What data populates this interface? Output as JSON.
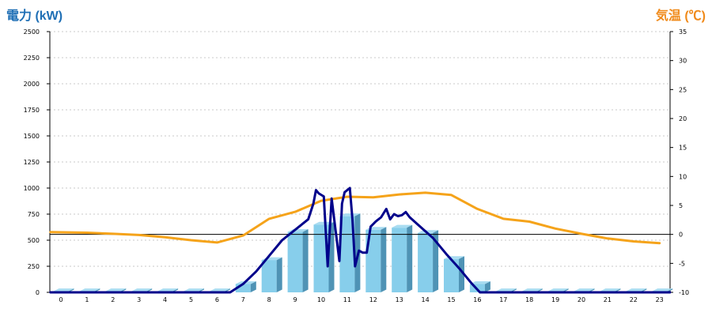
{
  "chart_data": {
    "type": "bar",
    "title": "",
    "xlabel": "",
    "y_left_label": "電力 (kW)",
    "y_right_label": "気温 (℃)",
    "categories": [
      "0",
      "1",
      "2",
      "3",
      "4",
      "5",
      "6",
      "7",
      "8",
      "9",
      "10",
      "11",
      "12",
      "13",
      "14",
      "15",
      "16",
      "17",
      "18",
      "19",
      "20",
      "21",
      "22",
      "23"
    ],
    "y_left_ticks": [
      "0",
      "250",
      "500",
      "750",
      "1000",
      "1250",
      "1500",
      "1750",
      "2000",
      "2250",
      "2500"
    ],
    "y_right_ticks": [
      "-10",
      "-5",
      "0",
      "5",
      "10",
      "15",
      "20",
      "25",
      "30",
      "35"
    ],
    "ylim_left": [
      0,
      2500
    ],
    "ylim_right": [
      -10,
      35
    ],
    "grid": true,
    "colors": {
      "left_title": "#1f6fb5",
      "right_title": "#f08a1a",
      "bar_front": "#87ceeb",
      "bar_side": "#4f93b5",
      "bar_top": "#a9dcf1",
      "power_line": "#00008b",
      "temperature_line": "#f5a31a",
      "zero_line": "#000000",
      "grid": "#c8c8c8"
    },
    "series": [
      {
        "kind": "bar",
        "axis": "left",
        "values": [
          10,
          10,
          10,
          10,
          10,
          10,
          10,
          80,
          310,
          580,
          650,
          730,
          600,
          620,
          570,
          320,
          80,
          10,
          10,
          10,
          10,
          10,
          10,
          10
        ]
      },
      {
        "kind": "line",
        "axis": "left",
        "points": [
          [
            -0.4,
            0
          ],
          [
            1,
            0
          ],
          [
            3,
            0
          ],
          [
            5,
            0
          ],
          [
            6.5,
            0
          ],
          [
            7,
            80
          ],
          [
            7.5,
            200
          ],
          [
            8,
            350
          ],
          [
            8.5,
            500
          ],
          [
            9,
            600
          ],
          [
            9.5,
            700
          ],
          [
            9.7,
            850
          ],
          [
            9.8,
            980
          ],
          [
            9.9,
            950
          ],
          [
            10.1,
            920
          ],
          [
            10.25,
            250
          ],
          [
            10.4,
            900
          ],
          [
            10.55,
            600
          ],
          [
            10.7,
            300
          ],
          [
            10.8,
            850
          ],
          [
            10.9,
            960
          ],
          [
            11.1,
            1000
          ],
          [
            11.2,
            700
          ],
          [
            11.3,
            250
          ],
          [
            11.45,
            400
          ],
          [
            11.6,
            380
          ],
          [
            11.75,
            380
          ],
          [
            11.9,
            630
          ],
          [
            12.1,
            680
          ],
          [
            12.3,
            720
          ],
          [
            12.5,
            800
          ],
          [
            12.65,
            700
          ],
          [
            12.8,
            750
          ],
          [
            12.95,
            730
          ],
          [
            13.1,
            740
          ],
          [
            13.25,
            770
          ],
          [
            13.4,
            720
          ],
          [
            13.8,
            630
          ],
          [
            14.3,
            520
          ],
          [
            14.8,
            370
          ],
          [
            15.3,
            230
          ],
          [
            15.8,
            80
          ],
          [
            16.1,
            0
          ],
          [
            18,
            0
          ],
          [
            20,
            0
          ],
          [
            23.4,
            0
          ]
        ]
      },
      {
        "kind": "line",
        "axis": "right",
        "points": [
          [
            -0.4,
            0.4
          ],
          [
            1,
            0.3
          ],
          [
            2,
            0.1
          ],
          [
            3,
            -0.1
          ],
          [
            4,
            -0.5
          ],
          [
            5,
            -1.0
          ],
          [
            6,
            -1.4
          ],
          [
            7,
            -0.2
          ],
          [
            8,
            2.7
          ],
          [
            9,
            3.9
          ],
          [
            10,
            5.8
          ],
          [
            11,
            6.5
          ],
          [
            12,
            6.4
          ],
          [
            13,
            6.9
          ],
          [
            14,
            7.2
          ],
          [
            15,
            6.8
          ],
          [
            16,
            4.4
          ],
          [
            17,
            2.7
          ],
          [
            18,
            2.2
          ],
          [
            19,
            1.0
          ],
          [
            20,
            0.1
          ],
          [
            21,
            -0.7
          ],
          [
            22,
            -1.2
          ],
          [
            23,
            -1.5
          ]
        ]
      }
    ]
  }
}
